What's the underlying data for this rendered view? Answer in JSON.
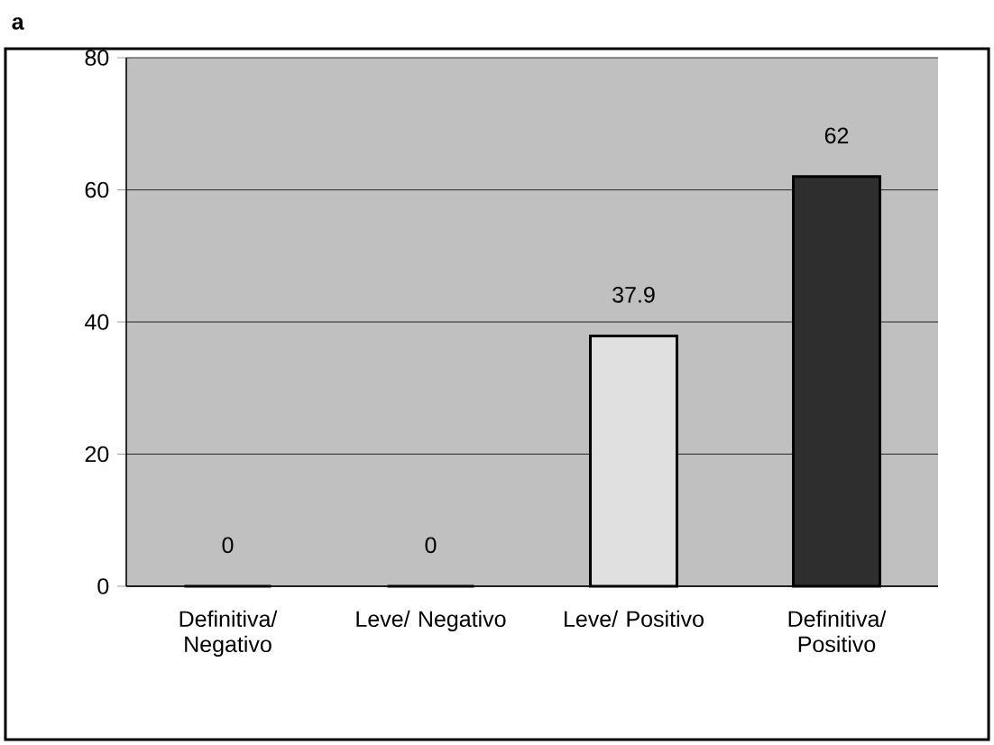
{
  "chart_data": {
    "type": "bar",
    "title": "a",
    "categories": [
      "Definitiva/ Negativo",
      "Leve/ Negativo",
      "Leve/ Positivo",
      "Definitiva/ Positivo"
    ],
    "values": [
      0,
      0,
      37.9,
      62
    ],
    "colors": [
      "#e0e0e0",
      "#e0e0e0",
      "#e0e0e0",
      "#2e2e2e"
    ],
    "ylim": [
      0,
      80
    ],
    "yticks": [
      0,
      20,
      40,
      60,
      80
    ],
    "grid": "y",
    "data_labels": true
  }
}
